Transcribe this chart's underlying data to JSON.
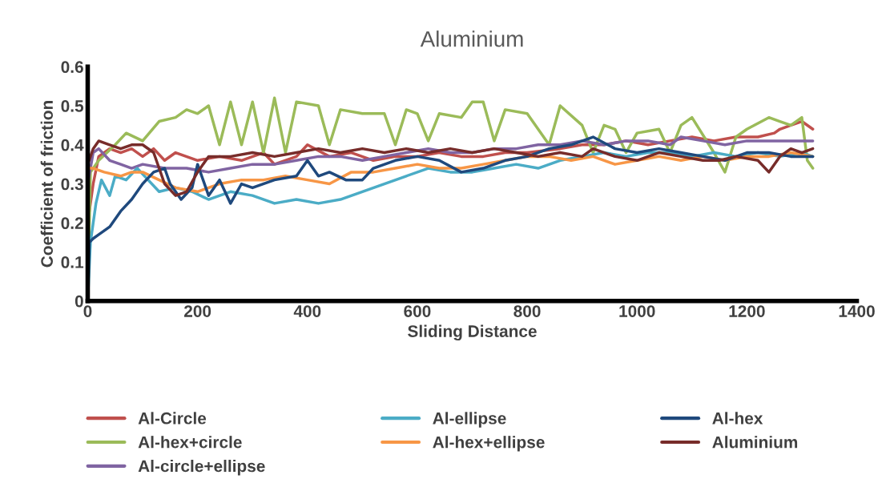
{
  "chart_data": {
    "type": "line",
    "title": "Aluminium",
    "xlabel": "Sliding Distance",
    "ylabel": "Coefficient of friction",
    "xlim": [
      0,
      1400
    ],
    "xticks": [
      0,
      200,
      400,
      600,
      800,
      1000,
      1200,
      1400
    ],
    "ylim": [
      0,
      0.6
    ],
    "yticks": [
      0,
      0.1,
      0.2,
      0.3,
      0.4,
      0.5,
      0.6
    ],
    "grid": false,
    "legend": "bottom",
    "marker": "none",
    "line_style": "solid",
    "series": [
      {
        "name": "Al-Circle",
        "color": "#c0504d",
        "x": [
          0,
          5,
          10,
          20,
          40,
          60,
          80,
          100,
          120,
          140,
          160,
          200,
          240,
          280,
          320,
          340,
          380,
          400,
          440,
          480,
          520,
          560,
          600,
          640,
          680,
          720,
          760,
          800,
          860,
          900,
          940,
          980,
          1020,
          1060,
          1100,
          1140,
          1180,
          1220,
          1250,
          1260,
          1280,
          1300,
          1320
        ],
        "values": [
          0.2,
          0.25,
          0.3,
          0.37,
          0.39,
          0.38,
          0.39,
          0.37,
          0.39,
          0.36,
          0.38,
          0.36,
          0.37,
          0.36,
          0.38,
          0.35,
          0.37,
          0.4,
          0.37,
          0.38,
          0.36,
          0.37,
          0.37,
          0.38,
          0.37,
          0.37,
          0.38,
          0.38,
          0.39,
          0.4,
          0.4,
          0.41,
          0.4,
          0.41,
          0.42,
          0.41,
          0.42,
          0.42,
          0.43,
          0.44,
          0.45,
          0.46,
          0.44
        ]
      },
      {
        "name": "Al-hex+circle",
        "color": "#9bbb59",
        "x": [
          0,
          5,
          20,
          50,
          70,
          100,
          130,
          160,
          180,
          200,
          220,
          240,
          260,
          280,
          300,
          320,
          340,
          360,
          380,
          420,
          440,
          460,
          500,
          540,
          560,
          580,
          600,
          620,
          640,
          680,
          700,
          720,
          740,
          760,
          800,
          840,
          860,
          900,
          920,
          940,
          960,
          980,
          1000,
          1040,
          1060,
          1080,
          1100,
          1140,
          1160,
          1180,
          1200,
          1240,
          1260,
          1280,
          1300,
          1310,
          1320
        ],
        "values": [
          0,
          0.33,
          0.36,
          0.4,
          0.43,
          0.41,
          0.46,
          0.47,
          0.49,
          0.48,
          0.5,
          0.4,
          0.51,
          0.4,
          0.51,
          0.38,
          0.52,
          0.38,
          0.51,
          0.5,
          0.4,
          0.49,
          0.48,
          0.48,
          0.4,
          0.49,
          0.48,
          0.41,
          0.48,
          0.47,
          0.51,
          0.51,
          0.41,
          0.49,
          0.48,
          0.4,
          0.5,
          0.45,
          0.38,
          0.45,
          0.44,
          0.38,
          0.43,
          0.44,
          0.38,
          0.45,
          0.47,
          0.38,
          0.33,
          0.42,
          0.44,
          0.47,
          0.46,
          0.45,
          0.47,
          0.36,
          0.34
        ]
      },
      {
        "name": "Al-circle+ellipse",
        "color": "#8064a2",
        "x": [
          0,
          10,
          20,
          40,
          60,
          80,
          100,
          140,
          180,
          220,
          260,
          300,
          340,
          380,
          420,
          460,
          500,
          540,
          580,
          620,
          660,
          700,
          740,
          780,
          820,
          860,
          900,
          940,
          980,
          1020,
          1060,
          1080,
          1120,
          1160,
          1200,
          1240,
          1320
        ],
        "values": [
          0.3,
          0.38,
          0.39,
          0.36,
          0.35,
          0.34,
          0.35,
          0.34,
          0.34,
          0.33,
          0.34,
          0.35,
          0.35,
          0.36,
          0.37,
          0.37,
          0.36,
          0.37,
          0.38,
          0.39,
          0.38,
          0.38,
          0.39,
          0.39,
          0.4,
          0.4,
          0.41,
          0.4,
          0.41,
          0.41,
          0.4,
          0.42,
          0.41,
          0.4,
          0.41,
          0.41,
          0.41
        ]
      },
      {
        "name": "Al-ellipse",
        "color": "#4bacc6",
        "x": [
          0,
          5,
          15,
          25,
          40,
          50,
          70,
          90,
          110,
          130,
          160,
          190,
          220,
          260,
          300,
          340,
          380,
          420,
          460,
          500,
          540,
          580,
          620,
          660,
          700,
          740,
          780,
          820,
          860,
          900,
          940,
          980,
          1020,
          1060,
          1100,
          1140,
          1180,
          1220,
          1260,
          1300,
          1320
        ],
        "values": [
          0,
          0.15,
          0.25,
          0.31,
          0.27,
          0.32,
          0.31,
          0.34,
          0.31,
          0.28,
          0.29,
          0.28,
          0.26,
          0.28,
          0.27,
          0.25,
          0.26,
          0.25,
          0.26,
          0.28,
          0.3,
          0.32,
          0.34,
          0.33,
          0.33,
          0.34,
          0.35,
          0.34,
          0.36,
          0.37,
          0.38,
          0.37,
          0.38,
          0.38,
          0.37,
          0.38,
          0.37,
          0.38,
          0.37,
          0.38,
          0.37
        ]
      },
      {
        "name": "Al-hex+ellipse",
        "color": "#f79646",
        "x": [
          0,
          10,
          30,
          60,
          80,
          100,
          130,
          160,
          200,
          240,
          280,
          320,
          360,
          400,
          440,
          480,
          520,
          560,
          600,
          640,
          680,
          720,
          760,
          800,
          840,
          880,
          920,
          960,
          1000,
          1040,
          1080,
          1120,
          1160,
          1200,
          1240,
          1280,
          1320
        ],
        "values": [
          0.34,
          0.34,
          0.33,
          0.32,
          0.33,
          0.33,
          0.31,
          0.29,
          0.28,
          0.3,
          0.31,
          0.31,
          0.32,
          0.31,
          0.3,
          0.33,
          0.33,
          0.34,
          0.35,
          0.34,
          0.34,
          0.35,
          0.36,
          0.37,
          0.37,
          0.36,
          0.37,
          0.35,
          0.36,
          0.37,
          0.36,
          0.37,
          0.36,
          0.37,
          0.37,
          0.38,
          0.37
        ]
      },
      {
        "name": "Al-hex",
        "color": "#1f497d",
        "x": [
          0,
          3,
          10,
          20,
          40,
          60,
          80,
          100,
          120,
          140,
          150,
          170,
          190,
          200,
          220,
          240,
          260,
          280,
          300,
          340,
          380,
          400,
          420,
          440,
          470,
          500,
          520,
          560,
          600,
          640,
          680,
          720,
          760,
          800,
          840,
          880,
          920,
          960,
          1000,
          1040,
          1080,
          1120,
          1160,
          1200,
          1240,
          1280,
          1320
        ],
        "values": [
          0,
          0.15,
          0.16,
          0.17,
          0.19,
          0.23,
          0.26,
          0.3,
          0.33,
          0.34,
          0.3,
          0.26,
          0.29,
          0.35,
          0.27,
          0.31,
          0.25,
          0.3,
          0.29,
          0.31,
          0.32,
          0.36,
          0.32,
          0.33,
          0.31,
          0.31,
          0.34,
          0.36,
          0.37,
          0.36,
          0.33,
          0.34,
          0.36,
          0.37,
          0.39,
          0.4,
          0.42,
          0.39,
          0.38,
          0.39,
          0.38,
          0.37,
          0.36,
          0.38,
          0.38,
          0.37,
          0.37
        ]
      },
      {
        "name": "Aluminium",
        "color": "#772c2a",
        "x": [
          0,
          10,
          20,
          40,
          60,
          80,
          100,
          120,
          140,
          160,
          180,
          200,
          220,
          260,
          300,
          340,
          380,
          420,
          460,
          500,
          540,
          580,
          620,
          660,
          700,
          740,
          780,
          820,
          860,
          900,
          920,
          960,
          1000,
          1040,
          1080,
          1120,
          1150,
          1180,
          1220,
          1240,
          1260,
          1280,
          1300,
          1320
        ],
        "values": [
          0.35,
          0.39,
          0.41,
          0.4,
          0.39,
          0.4,
          0.4,
          0.38,
          0.3,
          0.27,
          0.28,
          0.33,
          0.37,
          0.37,
          0.38,
          0.37,
          0.38,
          0.39,
          0.38,
          0.39,
          0.38,
          0.39,
          0.38,
          0.39,
          0.38,
          0.39,
          0.38,
          0.37,
          0.38,
          0.37,
          0.39,
          0.37,
          0.36,
          0.38,
          0.37,
          0.36,
          0.36,
          0.37,
          0.36,
          0.33,
          0.37,
          0.39,
          0.38,
          0.39
        ]
      }
    ]
  }
}
